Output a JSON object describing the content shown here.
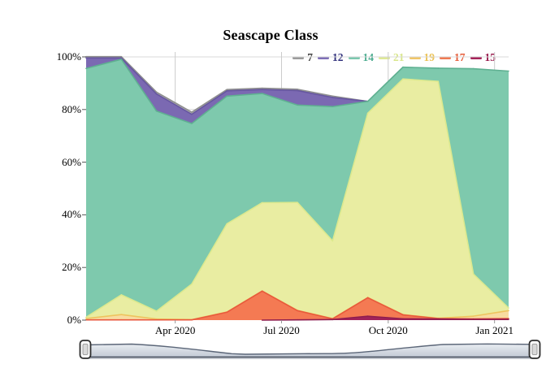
{
  "title": "Seascape Class",
  "chart_data": {
    "type": "area",
    "stacked": true,
    "unit": "%",
    "title": "Seascape Class",
    "x": [
      "Jan 2020",
      "Feb 2020",
      "Mar 2020",
      "Apr 2020",
      "May 2020",
      "Jun 2020",
      "Jul 2020",
      "Aug 2020",
      "Sep 2020",
      "Oct 2020",
      "Nov 2020",
      "Dec 2020",
      "Jan 2021"
    ],
    "series": [
      {
        "name": "7",
        "values": [
          0.5,
          0.5,
          0.7,
          0.8,
          0.5,
          0.5,
          0.5,
          0.5,
          0,
          0,
          0,
          0,
          0
        ],
        "fill": "#b0b0b0",
        "stroke": "#8f8f8f",
        "label_color": "#3f3f3f"
      },
      {
        "name": "12",
        "values": [
          4,
          0.5,
          6.5,
          3.5,
          2,
          1.5,
          5.5,
          3.5,
          0,
          0,
          0,
          0,
          0
        ],
        "fill": "#7b69b2",
        "stroke": "#6656a0",
        "label_color": "#31317c"
      },
      {
        "name": "14",
        "values": [
          94.5,
          89.5,
          76,
          61,
          48.5,
          41.5,
          37,
          51,
          4.5,
          4.5,
          5,
          78,
          90
        ],
        "fill": "#7ec9ad",
        "stroke": "#5fb091",
        "label_color": "#4fae92"
      },
      {
        "name": "21",
        "values": [
          0.5,
          7.5,
          3,
          13.5,
          33.5,
          33.5,
          41,
          29.5,
          70,
          89.5,
          90,
          16,
          1
        ],
        "fill": "#e9eda2",
        "stroke": "#dce98e",
        "label_color": "#d9e68c"
      },
      {
        "name": "19",
        "values": [
          0.5,
          2,
          0.3,
          0.1,
          0.1,
          0.1,
          0.1,
          0.1,
          0.1,
          0.1,
          0.1,
          1,
          3
        ],
        "fill": "#f8dca0",
        "stroke": "#eec45e",
        "label_color": "#ecc255"
      },
      {
        "name": "17",
        "values": [
          0.1,
          0.1,
          0.1,
          0.1,
          3,
          11,
          3.5,
          0.3,
          7,
          1.5,
          0.2,
          0.2,
          0.3
        ],
        "fill": "#f47a53",
        "stroke": "#e8593d",
        "label_color": "#e65c38"
      },
      {
        "name": "15",
        "values": [
          0,
          0,
          0,
          0,
          0,
          0,
          0.1,
          0.2,
          1.5,
          0.5,
          0.4,
          0.3,
          0.3
        ],
        "fill": "#a1235a",
        "stroke": "#8f1d4e",
        "label_color": "#991c4e"
      }
    ],
    "stack_order_bottom_to_top": [
      "15",
      "17",
      "19",
      "21",
      "14",
      "12",
      "7"
    ],
    "ylim": [
      0,
      100
    ],
    "ytick_labels": [
      "0%",
      "20%",
      "40%",
      "60%",
      "80%",
      "100%"
    ],
    "ytick_values": [
      0,
      20,
      40,
      60,
      80,
      100
    ],
    "xtick_labels": [
      "Apr 2020",
      "Jul 2020",
      "Oct 2020",
      "Jan 2021"
    ],
    "grid": true,
    "legend_position": "top-right"
  },
  "legend": {
    "items": [
      {
        "label": "7",
        "line_color": "#9b9b9b",
        "text_color": "#3f3f3f"
      },
      {
        "label": "12",
        "line_color": "#7e6fb6",
        "text_color": "#31317c"
      },
      {
        "label": "14",
        "line_color": "#7cc7ae",
        "text_color": "#4fae92"
      },
      {
        "label": "21",
        "line_color": "#dfe996",
        "text_color": "#d9e68c"
      },
      {
        "label": "19",
        "line_color": "#f0c668",
        "text_color": "#ecc255"
      },
      {
        "label": "17",
        "line_color": "#ef7a52",
        "text_color": "#e65c38"
      },
      {
        "label": "15",
        "line_color": "#a52459",
        "text_color": "#991c4e"
      }
    ]
  },
  "navigator": {
    "fill_top": "#e9edf2",
    "fill_bottom": "#c3cad5",
    "outline_color": "#5b6678",
    "border_color": "#3c4554",
    "handle_fill": "#fafafa",
    "handle_border": "#2f2f2f",
    "grip_fill": "#d9d9d9"
  },
  "grid_colors": {
    "h_line": "#d9d9d9",
    "v_line": "#cccccc",
    "tick": "#555555"
  }
}
